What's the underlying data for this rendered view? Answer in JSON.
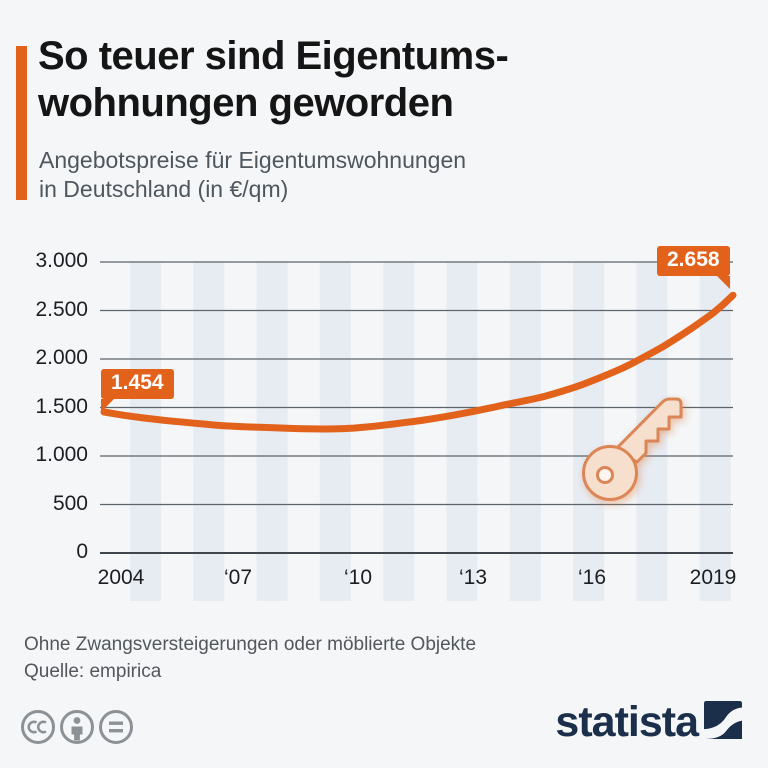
{
  "header": {
    "title": "So teuer sind Eigentums-\nwohnungen geworden",
    "subtitle": "Angebotspreise für Eigentumswohnungen\nin Deutschland (in €/qm)"
  },
  "chart_data": {
    "type": "line",
    "title": "Angebotspreise für Eigentumswohnungen in Deutschland (in €/qm)",
    "unit": "€/qm",
    "x_range": [
      2004,
      2019.75
    ],
    "ylim": [
      0,
      3000
    ],
    "grid": true,
    "background_stripes": true,
    "line_color": "#E2621C",
    "x_ticks": [
      "2004",
      "‘07",
      "‘10",
      "‘13",
      "‘16",
      "2019"
    ],
    "y_ticks": [
      "3.000",
      "2.500",
      "2.000",
      "1.500",
      "1.000",
      "500",
      "0"
    ],
    "series": [
      {
        "name": "Angebotspreise Eigentumswohnungen (€/qm)",
        "values": [
          1454,
          1436,
          1420,
          1405,
          1392,
          1380,
          1368,
          1358,
          1348,
          1338,
          1330,
          1320,
          1312,
          1306,
          1302,
          1298,
          1295,
          1291,
          1288,
          1284,
          1281,
          1279,
          1278,
          1279,
          1282,
          1288,
          1296,
          1306,
          1318,
          1330,
          1343,
          1356,
          1370,
          1386,
          1403,
          1421,
          1440,
          1460,
          1481,
          1502,
          1525,
          1545,
          1566,
          1588,
          1611,
          1640,
          1671,
          1704,
          1739,
          1779,
          1821,
          1864,
          1909,
          1960,
          2014,
          2070,
          2128,
          2192,
          2258,
          2327,
          2398,
          2472,
          2560,
          2658
        ]
      }
    ],
    "annotations": [
      {
        "label": "1.454",
        "value": 1454,
        "position": "start"
      },
      {
        "label": "2.658",
        "value": 2658,
        "position": "end"
      }
    ]
  },
  "footer": {
    "note": "Ohne Zwangsversteigerungen oder möblierte Objekte",
    "source": "Quelle: empirica"
  },
  "branding": {
    "logo_text": "statista",
    "license_icons": [
      "cc-icon",
      "attribution-icon",
      "equals-icon"
    ]
  },
  "watermark": {
    "icon": "key-icon"
  },
  "colors": {
    "accent": "#E2621C",
    "logo_navy": "#1B2F4B",
    "stripe": "#E7ECF3",
    "gridline": "#5B636B",
    "axis_line": "#3F464D",
    "background": "#F4F6F8"
  }
}
